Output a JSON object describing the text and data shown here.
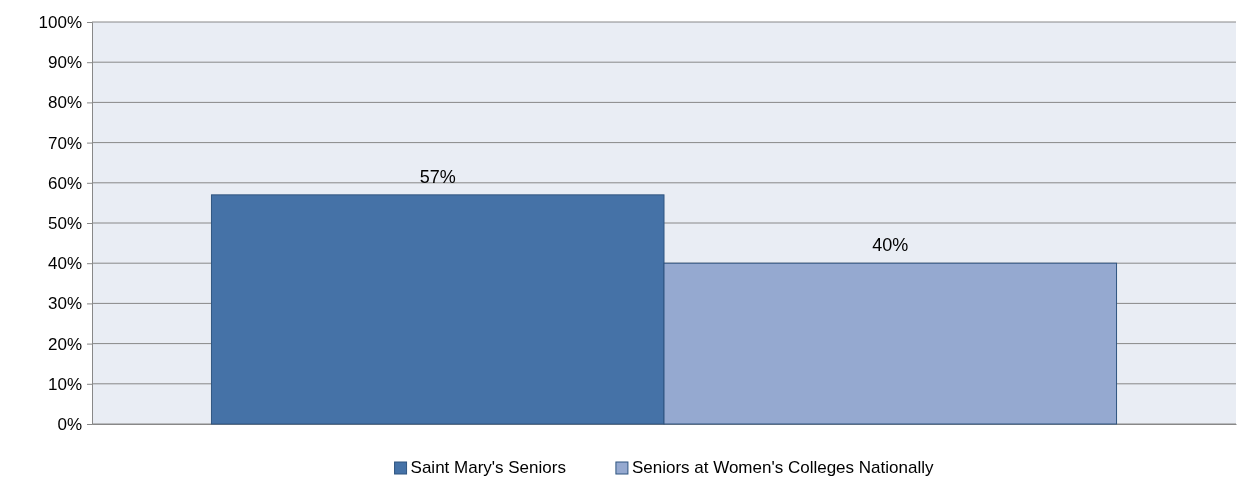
{
  "chart_data": {
    "type": "bar",
    "categories": [
      null
    ],
    "series": [
      {
        "name": "Saint Mary's Seniors",
        "color": "#4572a7",
        "values": [
          57
        ],
        "value_labels": [
          "57%"
        ]
      },
      {
        "name": "Seniors at Women's Colleges Nationally",
        "color": "#95a9d0",
        "values": [
          40
        ],
        "value_labels": [
          "40%"
        ]
      }
    ],
    "ylim": [
      0,
      100
    ],
    "yticks": [
      {
        "value": 0,
        "label": "0%"
      },
      {
        "value": 10,
        "label": "10%"
      },
      {
        "value": 20,
        "label": "20%"
      },
      {
        "value": 30,
        "label": "30%"
      },
      {
        "value": 40,
        "label": "40%"
      },
      {
        "value": 50,
        "label": "50%"
      },
      {
        "value": 60,
        "label": "60%"
      },
      {
        "value": 70,
        "label": "70%"
      },
      {
        "value": 80,
        "label": "80%"
      },
      {
        "value": 90,
        "label": "90%"
      },
      {
        "value": 100,
        "label": "100%"
      }
    ],
    "grid": "y",
    "legend": "bottom"
  }
}
